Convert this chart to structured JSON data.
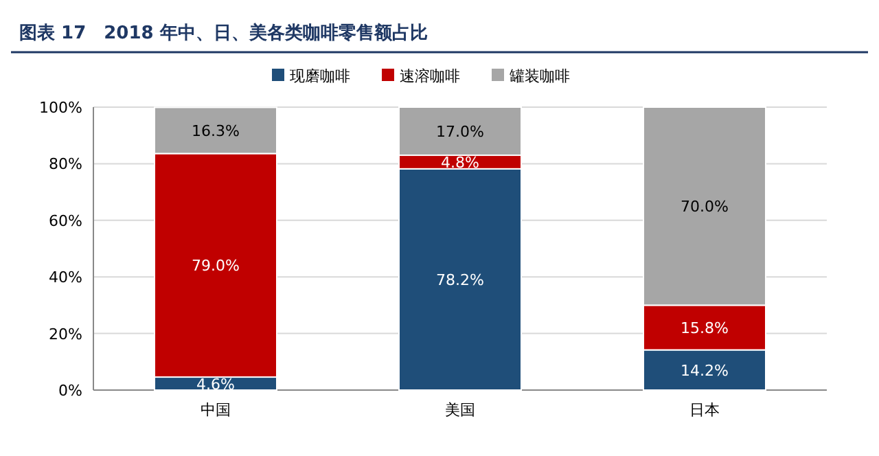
{
  "chart_data": {
    "type": "bar",
    "stacked": true,
    "title": "图表 17　2018 年中、日、美各类咖啡零售额占比",
    "categories": [
      "中国",
      "美国",
      "日本"
    ],
    "series": [
      {
        "name": "现磨咖啡",
        "color": "#1f4e79",
        "values": [
          4.6,
          78.2,
          14.2
        ],
        "value_labels": [
          "4.6%",
          "78.2%",
          "14.2%"
        ]
      },
      {
        "name": "速溶咖啡",
        "color": "#c00000",
        "values": [
          79.0,
          4.8,
          15.8
        ],
        "value_labels": [
          "79.0%",
          "4.8%",
          "15.8%"
        ]
      },
      {
        "name": "罐装咖啡",
        "color": "#a6a6a6",
        "values": [
          16.3,
          17.0,
          70.0
        ],
        "value_labels": [
          "16.3%",
          "17.0%",
          "70.0%"
        ]
      }
    ],
    "ylim": [
      0,
      100
    ],
    "yticks": [
      {
        "value": 0,
        "label": "0%"
      },
      {
        "value": 20,
        "label": "20%"
      },
      {
        "value": 40,
        "label": "40%"
      },
      {
        "value": 60,
        "label": "60%"
      },
      {
        "value": 80,
        "label": "80%"
      },
      {
        "value": 100,
        "label": "100%"
      }
    ],
    "grid": "y",
    "legend": "top"
  }
}
